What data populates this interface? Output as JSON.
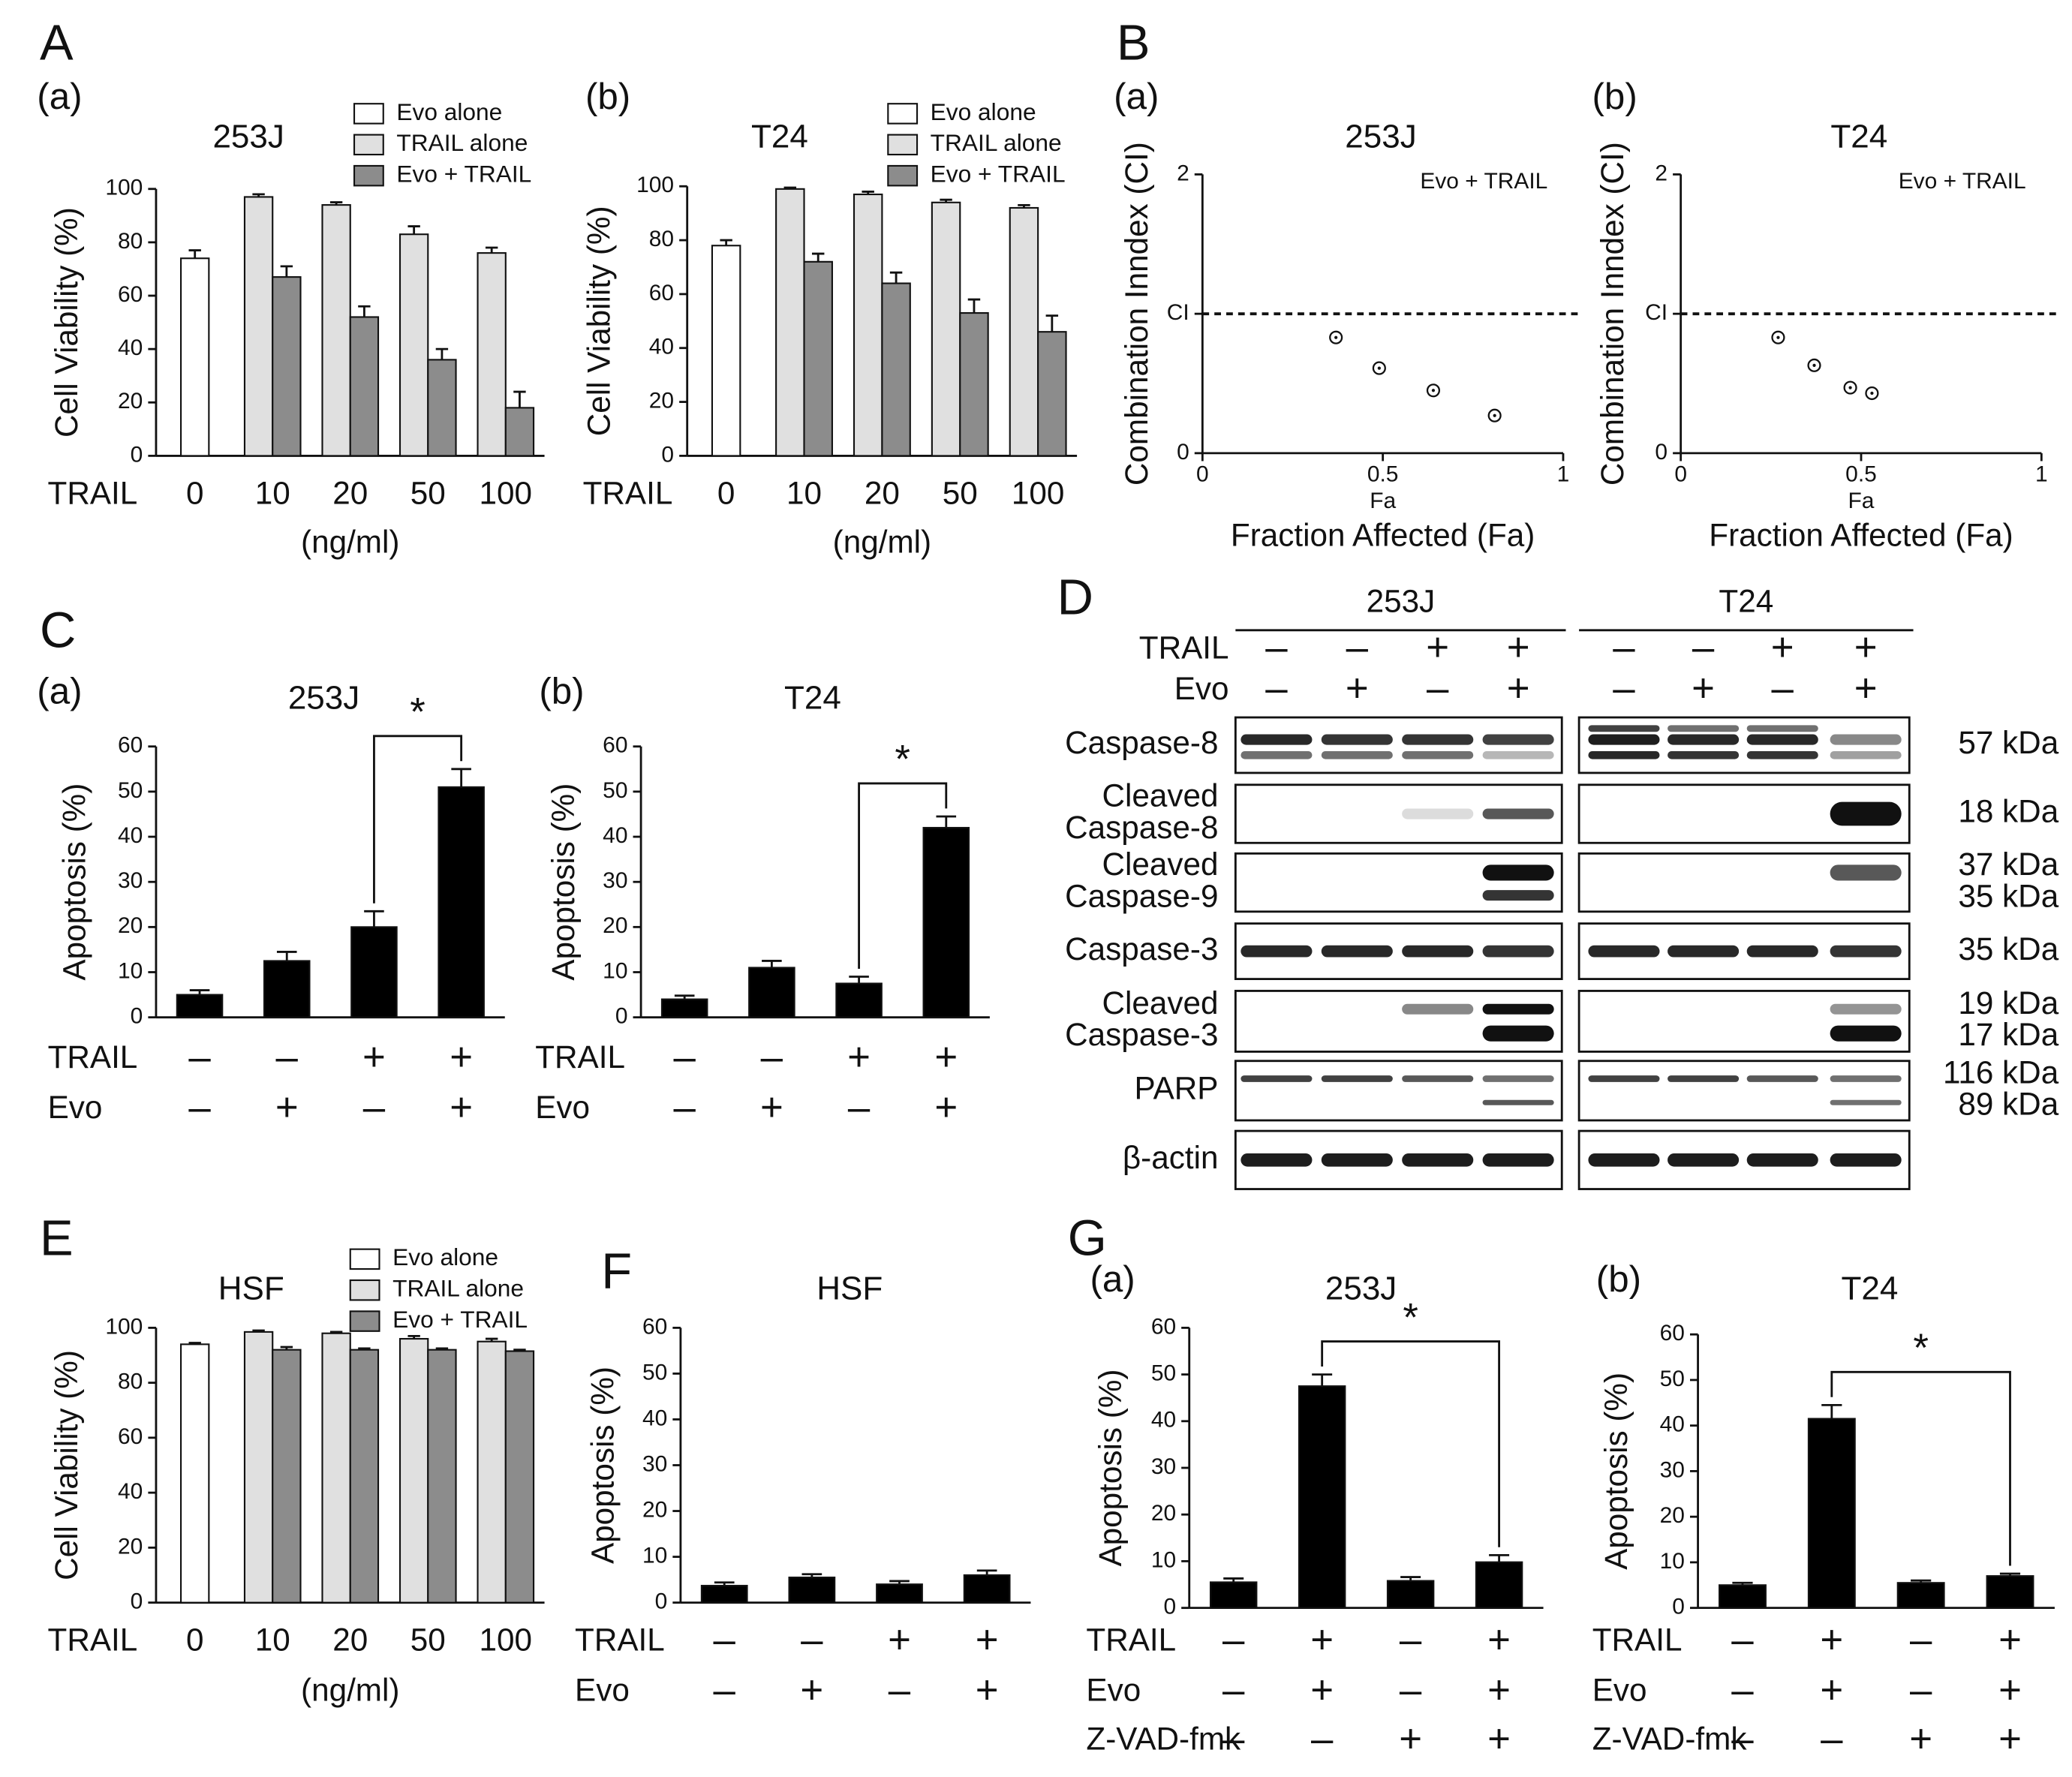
{
  "panels": [
    "A",
    "B",
    "C",
    "D",
    "E",
    "F",
    "G"
  ],
  "chart_data": [
    {
      "type": "bar",
      "panel": "(a)",
      "title": "253J",
      "ylabel": "Cell Viability (%)",
      "x_prefix": "TRAIL",
      "xlabel": "(ng/ml)",
      "categories": [
        "0",
        "10",
        "20",
        "50",
        "100"
      ],
      "ylim": [
        0,
        100
      ],
      "yticks": [
        0,
        20,
        40,
        60,
        80,
        100
      ],
      "legend": true,
      "series": [
        {
          "name": "Evo alone",
          "color": "#ffffff",
          "values": [
            74,
            null,
            null,
            null,
            null
          ],
          "errors": [
            3,
            null,
            null,
            null,
            null
          ]
        },
        {
          "name": "TRAIL alone",
          "color": "#e0e0e0",
          "values": [
            null,
            97,
            94,
            83,
            76
          ],
          "errors": [
            null,
            1,
            1,
            3,
            2
          ]
        },
        {
          "name": "Evo + TRAIL",
          "color": "#8c8c8c",
          "values": [
            null,
            67,
            52,
            36,
            18
          ],
          "errors": [
            null,
            4,
            4,
            4,
            6
          ]
        }
      ]
    },
    {
      "type": "bar",
      "panel": "(b)",
      "title": "T24",
      "ylabel": "Cell Viability (%)",
      "x_prefix": "TRAIL",
      "xlabel": "(ng/ml)",
      "categories": [
        "0",
        "10",
        "20",
        "50",
        "100"
      ],
      "ylim": [
        0,
        100
      ],
      "yticks": [
        0,
        20,
        40,
        60,
        80,
        100
      ],
      "legend": true,
      "series": [
        {
          "name": "Evo alone",
          "color": "#ffffff",
          "values": [
            78,
            null,
            null,
            null,
            null
          ],
          "errors": [
            2,
            null,
            null,
            null,
            null
          ]
        },
        {
          "name": "TRAIL alone",
          "color": "#e0e0e0",
          "values": [
            null,
            99,
            97,
            94,
            92
          ],
          "errors": [
            null,
            0.5,
            1,
            1,
            1
          ]
        },
        {
          "name": "Evo + TRAIL",
          "color": "#8c8c8c",
          "values": [
            null,
            72,
            64,
            53,
            46
          ],
          "errors": [
            null,
            3,
            4,
            5,
            6
          ]
        }
      ]
    },
    {
      "type": "scatter",
      "panel": "(a)",
      "title": "253J",
      "ylabel": "Combination Inndex (CI)",
      "xlabel": "Fraction Affected (Fa)",
      "annotations": [
        "Evo + TRAIL",
        "Fa"
      ],
      "xlim": [
        0,
        1
      ],
      "xticks": [
        0,
        0.5,
        1
      ],
      "ylim": [
        0,
        2
      ],
      "yticks": [
        0,
        {
          "value": 1,
          "label": "CI"
        },
        2
      ],
      "reference_line": 1,
      "color": "#111111",
      "x": [
        0.37,
        0.49,
        0.64,
        0.81
      ],
      "values": [
        0.83,
        0.61,
        0.45,
        0.27
      ]
    },
    {
      "type": "scatter",
      "panel": "(b)",
      "title": "T24",
      "ylabel": "Combination Inndex (CI)",
      "xlabel": "Fraction Affected (Fa)",
      "annotations": [
        "Evo + TRAIL",
        "Fa"
      ],
      "xlim": [
        0,
        1
      ],
      "xticks": [
        0,
        0.5,
        1
      ],
      "ylim": [
        0,
        2
      ],
      "yticks": [
        0,
        {
          "value": 1,
          "label": "CI"
        },
        2
      ],
      "reference_line": 1,
      "color": "#111111",
      "x": [
        0.27,
        0.37,
        0.47,
        0.53
      ],
      "values": [
        0.83,
        0.63,
        0.47,
        0.43
      ]
    },
    {
      "type": "bar",
      "panel": "(a)",
      "title": "253J",
      "ylabel": "Apoptosis (%)",
      "ylim": [
        0,
        60
      ],
      "yticks": [
        0,
        10,
        20,
        30,
        40,
        50,
        60
      ],
      "color": "#000000",
      "values": [
        5,
        12.5,
        20,
        51
      ],
      "errors": [
        1,
        2,
        3.5,
        4
      ],
      "conditions": [
        {
          "name": "TRAIL",
          "values": [
            "–",
            "–",
            "+",
            "+"
          ]
        },
        {
          "name": "Evo",
          "values": [
            "–",
            "+",
            "–",
            "+"
          ]
        }
      ],
      "significance": [
        {
          "between": [
            2,
            3
          ],
          "label": "*"
        }
      ]
    },
    {
      "type": "bar",
      "panel": "(b)",
      "title": "T24",
      "ylabel": "Apoptosis (%)",
      "ylim": [
        0,
        60
      ],
      "yticks": [
        0,
        10,
        20,
        30,
        40,
        50,
        60
      ],
      "color": "#000000",
      "values": [
        4,
        11,
        7.5,
        42
      ],
      "errors": [
        0.8,
        1.5,
        1.5,
        2.5
      ],
      "conditions": [
        {
          "name": "TRAIL",
          "values": [
            "–",
            "–",
            "+",
            "+"
          ]
        },
        {
          "name": "Evo",
          "values": [
            "–",
            "+",
            "–",
            "+"
          ]
        }
      ],
      "significance": [
        {
          "between": [
            2,
            3
          ],
          "label": "*"
        }
      ]
    },
    {
      "type": "bar",
      "title": "HSF",
      "ylabel": "Cell Viability (%)",
      "x_prefix": "TRAIL",
      "xlabel": "(ng/ml)",
      "categories": [
        "0",
        "10",
        "20",
        "50",
        "100"
      ],
      "ylim": [
        0,
        100
      ],
      "yticks": [
        0,
        20,
        40,
        60,
        80,
        100
      ],
      "legend": true,
      "series": [
        {
          "name": "Evo alone",
          "color": "#ffffff",
          "values": [
            94,
            null,
            null,
            null,
            null
          ],
          "errors": [
            0.5,
            null,
            null,
            null,
            null
          ]
        },
        {
          "name": "TRAIL alone",
          "color": "#e0e0e0",
          "values": [
            null,
            98.5,
            98,
            96,
            95
          ],
          "errors": [
            null,
            0.5,
            0.5,
            1,
            1
          ]
        },
        {
          "name": "Evo + TRAIL",
          "color": "#8c8c8c",
          "values": [
            null,
            92,
            92,
            92,
            91.5
          ],
          "errors": [
            null,
            1,
            0.5,
            0.5,
            0.5
          ]
        }
      ]
    },
    {
      "type": "bar",
      "title": "HSF",
      "ylabel": "Apoptosis (%)",
      "ylim": [
        0,
        60
      ],
      "yticks": [
        0,
        10,
        20,
        30,
        40,
        50,
        60
      ],
      "color": "#000000",
      "values": [
        3.7,
        5.5,
        4,
        6
      ],
      "errors": [
        0.7,
        0.7,
        0.7,
        1
      ],
      "conditions": [
        {
          "name": "TRAIL",
          "values": [
            "–",
            "–",
            "+",
            "+"
          ]
        },
        {
          "name": "Evo",
          "values": [
            "–",
            "+",
            "–",
            "+"
          ]
        }
      ]
    },
    {
      "type": "bar",
      "panel": "(a)",
      "title": "253J",
      "ylabel": "Apoptosis (%)",
      "ylim": [
        0,
        60
      ],
      "yticks": [
        0,
        10,
        20,
        30,
        40,
        50,
        60
      ],
      "color": "#000000",
      "values": [
        5.5,
        47.5,
        5.8,
        9.8
      ],
      "errors": [
        0.8,
        2.5,
        0.8,
        1.5
      ],
      "conditions": [
        {
          "name": "TRAIL",
          "values": [
            "–",
            "+",
            "–",
            "+"
          ]
        },
        {
          "name": "Evo",
          "values": [
            "–",
            "+",
            "–",
            "+"
          ]
        },
        {
          "name": "Z-VAD-fmk",
          "values": [
            "–",
            "–",
            "+",
            "+"
          ]
        }
      ],
      "significance": [
        {
          "between": [
            1,
            3
          ],
          "label": "*"
        }
      ]
    },
    {
      "type": "bar",
      "panel": "(b)",
      "title": "T24",
      "ylabel": "Apoptosis (%)",
      "ylim": [
        0,
        60
      ],
      "yticks": [
        0,
        10,
        20,
        30,
        40,
        50,
        60
      ],
      "color": "#000000",
      "values": [
        5,
        41.5,
        5.5,
        7
      ],
      "errors": [
        0.5,
        3,
        0.5,
        0.5
      ],
      "conditions": [
        {
          "name": "TRAIL",
          "values": [
            "–",
            "+",
            "–",
            "+"
          ]
        },
        {
          "name": "Evo",
          "values": [
            "–",
            "+",
            "–",
            "+"
          ]
        },
        {
          "name": "Z-VAD-fmk",
          "values": [
            "–",
            "–",
            "+",
            "+"
          ]
        }
      ],
      "significance": [
        {
          "between": [
            1,
            3
          ],
          "label": "*"
        }
      ]
    }
  ],
  "blot": {
    "groups": [
      "253J",
      "T24"
    ],
    "treatments": [
      {
        "name": "TRAIL",
        "values": [
          "–",
          "–",
          "+",
          "+",
          "–",
          "–",
          "+",
          "+"
        ]
      },
      {
        "name": "Evo",
        "values": [
          "–",
          "+",
          "–",
          "+",
          "–",
          "+",
          "–",
          "+"
        ]
      }
    ],
    "proteins": [
      {
        "name": [
          "Caspase-8"
        ],
        "sizes": [
          "57 kDa"
        ]
      },
      {
        "name": [
          "Cleaved",
          "Caspase-8"
        ],
        "sizes": [
          "18 kDa"
        ]
      },
      {
        "name": [
          "Cleaved",
          "Caspase-9"
        ],
        "sizes": [
          "37 kDa",
          "35 kDa"
        ]
      },
      {
        "name": [
          "Caspase-3"
        ],
        "sizes": [
          "35 kDa"
        ]
      },
      {
        "name": [
          "Cleaved",
          "Caspase-3"
        ],
        "sizes": [
          "19 kDa",
          "17 kDa"
        ]
      },
      {
        "name": [
          "PARP"
        ],
        "sizes": [
          "116 kDa",
          "89 kDa"
        ]
      },
      {
        "name": [
          "β-actin"
        ],
        "sizes": []
      }
    ]
  }
}
